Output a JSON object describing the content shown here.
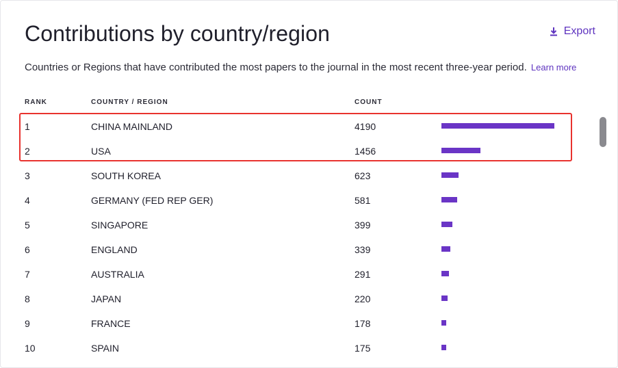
{
  "header": {
    "title": "Contributions by country/region",
    "export_label": "Export",
    "subtitle": "Countries or Regions that have contributed the most papers to the journal in the most recent three-year period.",
    "learn_more": "Learn more"
  },
  "table": {
    "columns": {
      "rank": "RANK",
      "country": "COUNTRY / REGION",
      "count": "COUNT"
    },
    "max_count": 4190,
    "rows": [
      {
        "rank": "1",
        "country": "CHINA MAINLAND",
        "count": "4190",
        "value": 4190
      },
      {
        "rank": "2",
        "country": "USA",
        "count": "1456",
        "value": 1456
      },
      {
        "rank": "3",
        "country": "SOUTH KOREA",
        "count": "623",
        "value": 623
      },
      {
        "rank": "4",
        "country": "GERMANY (FED REP GER)",
        "count": "581",
        "value": 581
      },
      {
        "rank": "5",
        "country": "SINGAPORE",
        "count": "399",
        "value": 399
      },
      {
        "rank": "6",
        "country": "ENGLAND",
        "count": "339",
        "value": 339
      },
      {
        "rank": "7",
        "country": "AUSTRALIA",
        "count": "291",
        "value": 291
      },
      {
        "rank": "8",
        "country": "JAPAN",
        "count": "220",
        "value": 220
      },
      {
        "rank": "9",
        "country": "FRANCE",
        "count": "178",
        "value": 178
      },
      {
        "rank": "10",
        "country": "SPAIN",
        "count": "175",
        "value": 175
      }
    ]
  },
  "colors": {
    "accent": "#5e33bf",
    "bar": "#6a35c6",
    "highlight": "#e8322e"
  }
}
